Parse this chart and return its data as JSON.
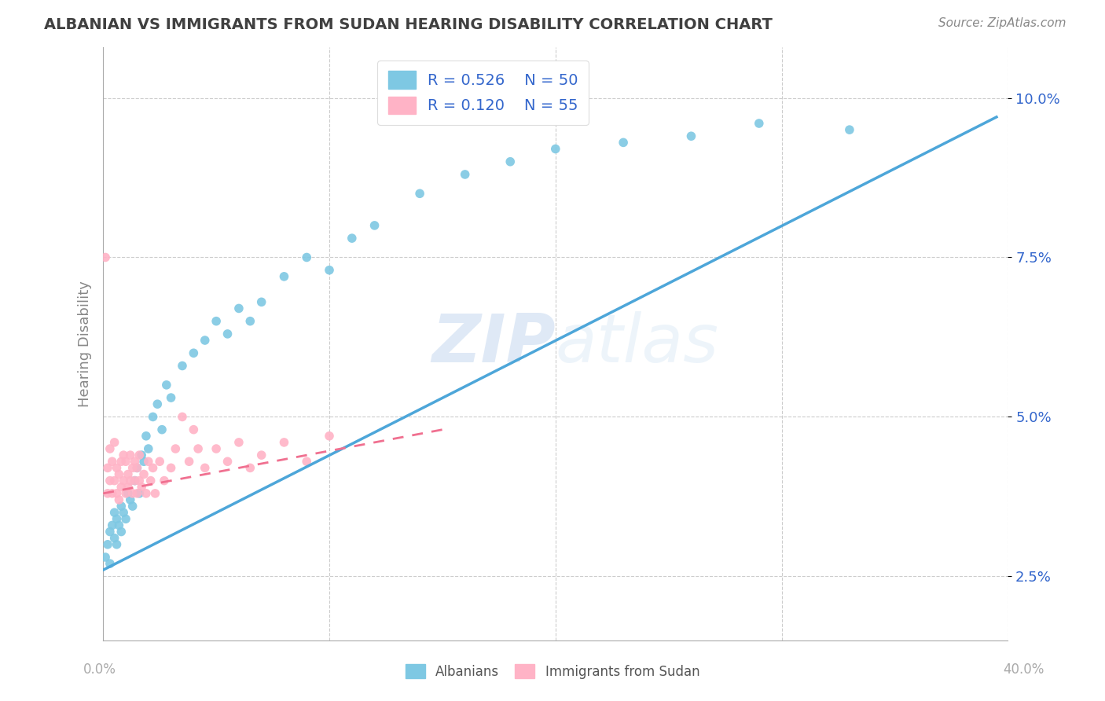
{
  "title": "ALBANIAN VS IMMIGRANTS FROM SUDAN HEARING DISABILITY CORRELATION CHART",
  "source": "Source: ZipAtlas.com",
  "ylabel": "Hearing Disability",
  "yticks": [
    0.025,
    0.05,
    0.075,
    0.1
  ],
  "ytick_labels": [
    "2.5%",
    "5.0%",
    "7.5%",
    "10.0%"
  ],
  "xlim": [
    0.0,
    0.4
  ],
  "ylim": [
    0.015,
    0.108
  ],
  "legend_r1": "R = 0.526",
  "legend_n1": "N = 50",
  "legend_r2": "R = 0.120",
  "legend_n2": "N = 55",
  "color_albanian": "#7ec8e3",
  "color_sudan": "#ffb3c6",
  "color_albanian_line": "#4da6d9",
  "color_sudan_line": "#f07090",
  "watermark_zip": "ZIP",
  "watermark_atlas": "atlas",
  "albanian_x": [
    0.001,
    0.002,
    0.003,
    0.003,
    0.004,
    0.005,
    0.005,
    0.006,
    0.006,
    0.007,
    0.008,
    0.008,
    0.009,
    0.01,
    0.011,
    0.012,
    0.013,
    0.014,
    0.015,
    0.016,
    0.017,
    0.018,
    0.019,
    0.02,
    0.022,
    0.024,
    0.026,
    0.028,
    0.03,
    0.035,
    0.04,
    0.045,
    0.05,
    0.055,
    0.06,
    0.065,
    0.07,
    0.08,
    0.09,
    0.1,
    0.11,
    0.12,
    0.14,
    0.16,
    0.18,
    0.2,
    0.23,
    0.26,
    0.29,
    0.33
  ],
  "albanian_y": [
    0.028,
    0.03,
    0.032,
    0.027,
    0.033,
    0.031,
    0.035,
    0.03,
    0.034,
    0.033,
    0.032,
    0.036,
    0.035,
    0.034,
    0.038,
    0.037,
    0.036,
    0.04,
    0.042,
    0.038,
    0.044,
    0.043,
    0.047,
    0.045,
    0.05,
    0.052,
    0.048,
    0.055,
    0.053,
    0.058,
    0.06,
    0.062,
    0.065,
    0.063,
    0.067,
    0.065,
    0.068,
    0.072,
    0.075,
    0.073,
    0.078,
    0.08,
    0.085,
    0.088,
    0.09,
    0.092,
    0.093,
    0.094,
    0.096,
    0.095
  ],
  "sudan_x": [
    0.001,
    0.002,
    0.002,
    0.003,
    0.003,
    0.004,
    0.004,
    0.005,
    0.005,
    0.006,
    0.006,
    0.007,
    0.007,
    0.008,
    0.008,
    0.009,
    0.009,
    0.01,
    0.01,
    0.011,
    0.011,
    0.012,
    0.012,
    0.013,
    0.013,
    0.014,
    0.014,
    0.015,
    0.015,
    0.016,
    0.016,
    0.017,
    0.018,
    0.019,
    0.02,
    0.021,
    0.022,
    0.023,
    0.025,
    0.027,
    0.03,
    0.032,
    0.035,
    0.038,
    0.04,
    0.042,
    0.045,
    0.05,
    0.055,
    0.06,
    0.065,
    0.07,
    0.08,
    0.09,
    0.1
  ],
  "sudan_y": [
    0.075,
    0.038,
    0.042,
    0.04,
    0.045,
    0.038,
    0.043,
    0.04,
    0.046,
    0.038,
    0.042,
    0.041,
    0.037,
    0.043,
    0.039,
    0.04,
    0.044,
    0.038,
    0.043,
    0.039,
    0.041,
    0.04,
    0.044,
    0.038,
    0.042,
    0.04,
    0.043,
    0.038,
    0.042,
    0.04,
    0.044,
    0.039,
    0.041,
    0.038,
    0.043,
    0.04,
    0.042,
    0.038,
    0.043,
    0.04,
    0.042,
    0.045,
    0.05,
    0.043,
    0.048,
    0.045,
    0.042,
    0.045,
    0.043,
    0.046,
    0.042,
    0.044,
    0.046,
    0.043,
    0.047
  ],
  "alb_line_x": [
    0.0,
    0.395
  ],
  "alb_line_y": [
    0.026,
    0.097
  ],
  "sud_line_x": [
    0.0,
    0.15
  ],
  "sud_line_y": [
    0.038,
    0.048
  ],
  "grid_color": "#cccccc",
  "background_color": "#ffffff",
  "title_color": "#404040",
  "axis_color": "#aaaaaa",
  "tick_label_color": "#3366cc",
  "legend_label_color": "#333333"
}
